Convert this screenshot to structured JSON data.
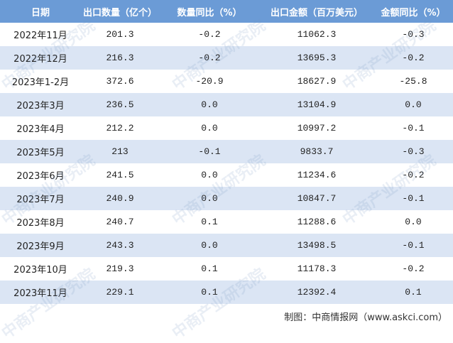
{
  "table": {
    "header": [
      "日期",
      "出口数量（亿个）",
      "数量同比（%）",
      "出口金额（百万美元）",
      "金额同比（%）"
    ],
    "rows": [
      [
        "2022年11月",
        "201.3",
        "-0.2",
        "11062.3",
        "-0.3"
      ],
      [
        "2022年12月",
        "216.3",
        "-0.2",
        "13695.3",
        "-0.2"
      ],
      [
        "2023年1-2月",
        "372.6",
        "-20.9",
        "18627.9",
        "-25.8"
      ],
      [
        "2023年3月",
        "236.5",
        "0.0",
        "13104.9",
        "0.0"
      ],
      [
        "2023年4月",
        "212.2",
        "0.0",
        "10997.2",
        "-0.1"
      ],
      [
        "2023年5月",
        "213",
        "-0.1",
        "9833.7",
        "-0.3"
      ],
      [
        "2023年6月",
        "241.5",
        "0.0",
        "11234.6",
        "-0.2"
      ],
      [
        "2023年7月",
        "240.9",
        "0.0",
        "10847.7",
        "-0.1"
      ],
      [
        "2023年8月",
        "240.7",
        "0.1",
        "11288.6",
        "0.0"
      ],
      [
        "2023年9月",
        "243.3",
        "0.0",
        "13498.5",
        "-0.1"
      ],
      [
        "2023年10月",
        "219.3",
        "0.1",
        "11178.3",
        "-0.2"
      ],
      [
        "2023年11月",
        "229.1",
        "0.1",
        "12392.4",
        "0.1"
      ]
    ]
  },
  "source": "制图：中商情报网（www.askci.com）",
  "watermark": "中商产业研究院"
}
